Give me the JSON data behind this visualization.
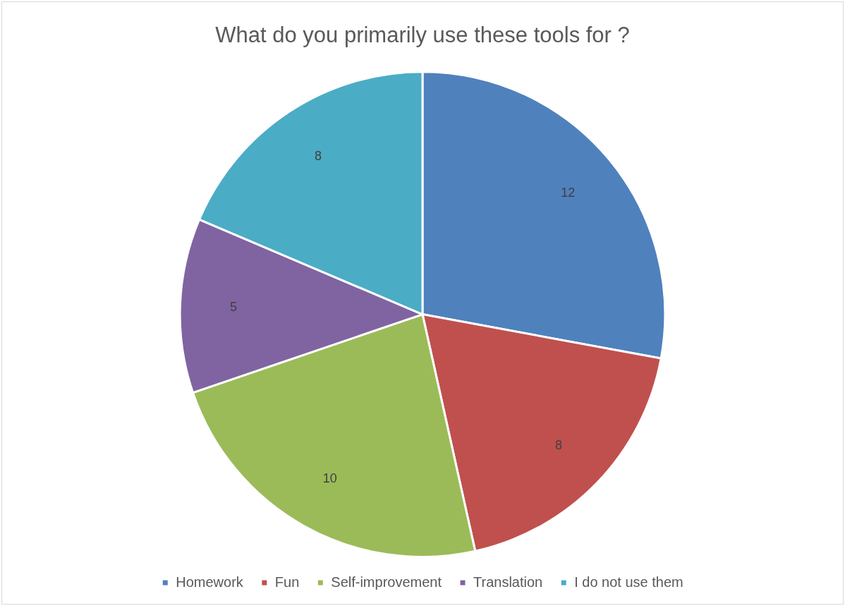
{
  "chart_data": {
    "type": "pie",
    "title": "What do you primarily use these tools for ?",
    "categories": [
      "Homework",
      "Fun",
      "Self-improvement",
      "Translation",
      "I do not use them"
    ],
    "values": [
      12,
      8,
      10,
      5,
      8
    ],
    "colors": [
      "#4f81bd",
      "#c0504d",
      "#9bbb59",
      "#8064a2",
      "#4bacc6"
    ],
    "data_labels": true,
    "legend": "bottom"
  }
}
